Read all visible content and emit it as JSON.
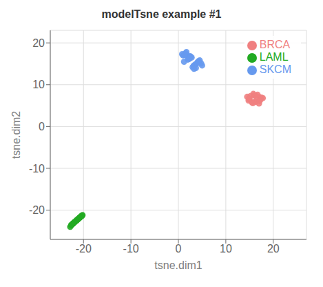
{
  "chart_data": {
    "type": "scatter",
    "title": "modelTsne example #1",
    "xlabel": "tsne.dim1",
    "ylabel": "tsne.dim2",
    "xlim": [
      -27,
      27
    ],
    "ylim": [
      -27,
      23
    ],
    "xticks": [
      -20,
      -10,
      0,
      10,
      20
    ],
    "yticks": [
      -20,
      -10,
      0,
      10,
      20
    ],
    "grid": true,
    "legend": "upper right",
    "series": [
      {
        "name": "BRCA",
        "color": "#f08080",
        "x": [
          15.0,
          16.5,
          17.8,
          16.0,
          15.5,
          14.8,
          17.2,
          16.2,
          15.8,
          17.0,
          17.5,
          15.2,
          16.3,
          14.5,
          17.3,
          15.7,
          16.7,
          17.1,
          14.9,
          16.1
        ],
        "y": [
          6.5,
          7.2,
          6.8,
          7.5,
          5.8,
          6.2,
          7.0,
          6.0,
          7.8,
          5.5,
          6.9,
          7.3,
          5.9,
          7.1,
          6.4,
          5.6,
          7.6,
          6.1,
          6.7,
          7.4
        ]
      },
      {
        "name": "LAML",
        "color": "#22aa22",
        "x": [
          -21.5,
          -20.8,
          -22.0,
          -21.0,
          -20.5,
          -22.5,
          -21.8,
          -20.2,
          -22.2,
          -21.3,
          -20.9,
          -22.8,
          -21.1,
          -20.6,
          -22.3,
          -21.6,
          -20.4,
          -22.1,
          -21.4,
          -20.7,
          -22.6,
          -21.2,
          -20.3,
          -21.9,
          -22.4
        ],
        "y": [
          -22.5,
          -21.8,
          -23.0,
          -22.0,
          -21.5,
          -23.5,
          -22.8,
          -21.2,
          -23.2,
          -22.3,
          -21.9,
          -24.0,
          -22.1,
          -21.6,
          -23.3,
          -22.6,
          -21.4,
          -23.1,
          -22.4,
          -21.7,
          -23.6,
          -22.2,
          -21.3,
          -22.9,
          -23.4
        ]
      },
      {
        "name": "SKCM",
        "color": "#6699ee",
        "x": [
          1.2,
          2.5,
          3.8,
          1.8,
          3.2,
          2.0,
          4.5,
          1.5,
          3.5,
          2.8,
          4.0,
          1.0,
          3.0,
          2.3,
          4.2,
          1.7,
          3.7,
          2.6,
          4.8,
          0.8,
          3.3,
          2.1,
          4.3,
          1.3,
          5.0
        ],
        "y": [
          15.5,
          16.8,
          15.0,
          17.2,
          14.5,
          16.0,
          15.8,
          17.5,
          14.8,
          16.5,
          15.3,
          17.0,
          14.2,
          16.2,
          15.6,
          17.8,
          14.0,
          16.7,
          15.1,
          17.3,
          13.8,
          16.3,
          15.4,
          17.1,
          14.6
        ]
      }
    ]
  }
}
